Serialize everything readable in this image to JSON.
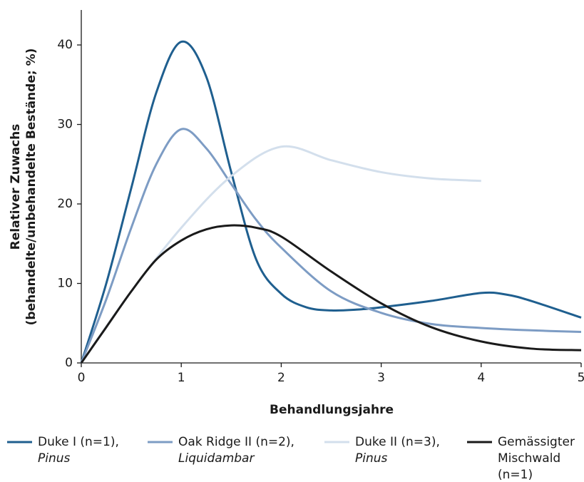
{
  "chart_data": {
    "type": "line",
    "xlabel": "Behandlungsjahre",
    "ylabel": [
      "Relativer Zuwachs",
      "(behandelte/unbehandelte Bestände; %)"
    ],
    "xlim": [
      0,
      5
    ],
    "xticks": [
      0,
      1,
      2,
      3,
      4,
      5
    ],
    "ylim": [
      0,
      44.4
    ],
    "yticks": [
      0,
      10,
      20,
      30,
      40
    ],
    "grid": false,
    "series": [
      {
        "name": [
          "Duke I (n=1),",
          "Pinus"
        ],
        "italic": [
          false,
          true
        ],
        "color": "#1f5f8f",
        "x": [
          0,
          0.25,
          0.5,
          0.75,
          1,
          1.25,
          1.5,
          1.75,
          2,
          2.25,
          2.5,
          2.75,
          3,
          3.5,
          4,
          4.25,
          4.5,
          5
        ],
        "values": [
          0,
          10,
          22,
          34,
          40.4,
          36,
          24,
          13,
          8.7,
          7,
          6.6,
          6.7,
          7,
          7.8,
          8.8,
          8.6,
          7.8,
          5.7
        ]
      },
      {
        "name": [
          "Oak Ridge II (n=2),",
          "Liquidambar"
        ],
        "italic": [
          false,
          true
        ],
        "color": "#7d9cc4",
        "x": [
          0,
          0.25,
          0.5,
          0.75,
          1,
          1.25,
          1.5,
          1.75,
          2,
          2.5,
          3,
          3.5,
          4,
          4.5,
          5
        ],
        "values": [
          0,
          8,
          17,
          25,
          29.4,
          27,
          22.5,
          18,
          14.5,
          9,
          6.3,
          4.9,
          4.4,
          4.1,
          3.9
        ]
      },
      {
        "name": [
          "Duke II (n=3),",
          "Pinus"
        ],
        "italic": [
          false,
          true
        ],
        "color": "#d3dfec",
        "x": [
          0,
          0.5,
          1,
          1.5,
          2,
          2.5,
          3,
          3.5,
          4
        ],
        "values": [
          0,
          9,
          17,
          23.5,
          27.2,
          25.5,
          24,
          23.2,
          22.9
        ]
      },
      {
        "name": [
          "Gemässigter",
          "Mischwald",
          "(n=1)"
        ],
        "italic": [
          false,
          false,
          false
        ],
        "color": "#1a1a1a",
        "x": [
          0,
          0.25,
          0.5,
          0.75,
          1,
          1.25,
          1.5,
          1.75,
          2,
          2.5,
          3,
          3.5,
          4,
          4.5,
          5
        ],
        "values": [
          0,
          4.5,
          9,
          13,
          15.4,
          16.8,
          17.3,
          17,
          15.9,
          11.5,
          7.5,
          4.5,
          2.7,
          1.8,
          1.6
        ]
      }
    ]
  }
}
